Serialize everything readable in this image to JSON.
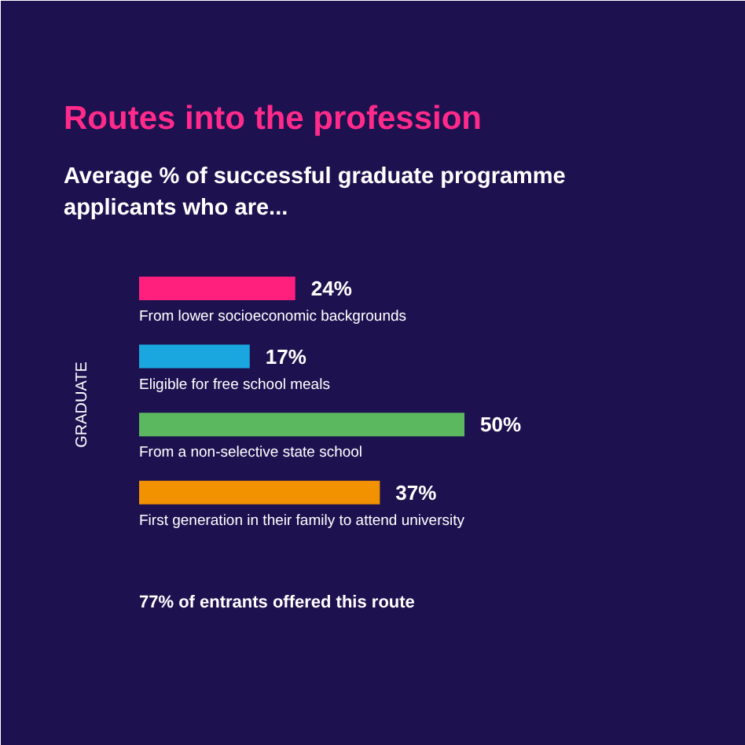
{
  "chart_data": {
    "type": "bar",
    "orientation": "horizontal",
    "title": "Routes into the profession",
    "subtitle": "Average % of successful graduate programme applicants who are...",
    "ylabel": "GRADUATE",
    "categories": [
      "From lower socioeconomic backgrounds",
      "Eligible for free school meals",
      "From a non-selective state school",
      "First generation in their family to attend university"
    ],
    "values": [
      24,
      17,
      50,
      37
    ],
    "value_labels": [
      "24%",
      "17%",
      "50%",
      "37%"
    ],
    "colors": [
      "#ff1f7d",
      "#1aa7e0",
      "#5cb85f",
      "#f39200"
    ],
    "annotations": [
      "77% of entrants offered this route"
    ]
  }
}
